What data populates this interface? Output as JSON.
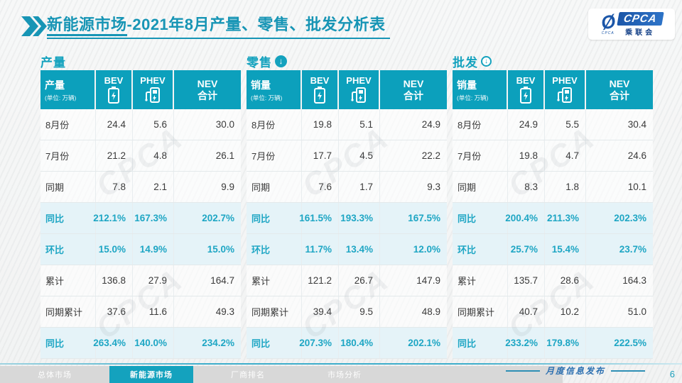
{
  "title": {
    "prefix": "新能源市场",
    "suffix": "-2021年8月产量、零售、批发分析表"
  },
  "logo": {
    "swoosh": "Ø",
    "swoosh_sub": "CPCA",
    "name": "CPCA",
    "assoc": "乘联会"
  },
  "shared": {
    "bev": "BEV",
    "phev": "PHEV",
    "nev_line1": "NEV",
    "nev_line2": "合计"
  },
  "watermark": "CPCA",
  "tables": [
    {
      "section": "产量",
      "header_label": "产量",
      "unit": "(单位: 万辆)",
      "rows": [
        {
          "label": "8月份",
          "values": [
            "24.4",
            "5.6",
            "30.0"
          ],
          "highlight": false
        },
        {
          "label": "7月份",
          "values": [
            "21.2",
            "4.8",
            "26.1"
          ],
          "highlight": false
        },
        {
          "label": "同期",
          "values": [
            "7.8",
            "2.1",
            "9.9"
          ],
          "highlight": false
        },
        {
          "label": "同比",
          "values": [
            "212.1%",
            "167.3%",
            "202.7%"
          ],
          "highlight": true
        },
        {
          "label": "环比",
          "values": [
            "15.0%",
            "14.9%",
            "15.0%"
          ],
          "highlight": true
        },
        {
          "label": "累计",
          "values": [
            "136.8",
            "27.9",
            "164.7"
          ],
          "highlight": false
        },
        {
          "label": "同期累计",
          "values": [
            "37.6",
            "11.6",
            "49.3"
          ],
          "highlight": false
        },
        {
          "label": "同比",
          "values": [
            "263.4%",
            "140.0%",
            "234.2%"
          ],
          "highlight": true
        }
      ]
    },
    {
      "section": "零售",
      "header_label": "销量",
      "unit": "(单位: 万辆)",
      "rows": [
        {
          "label": "8月份",
          "values": [
            "19.8",
            "5.1",
            "24.9"
          ],
          "highlight": false
        },
        {
          "label": "7月份",
          "values": [
            "17.7",
            "4.5",
            "22.2"
          ],
          "highlight": false
        },
        {
          "label": "同期",
          "values": [
            "7.6",
            "1.7",
            "9.3"
          ],
          "highlight": false
        },
        {
          "label": "同比",
          "values": [
            "161.5%",
            "193.3%",
            "167.5%"
          ],
          "highlight": true
        },
        {
          "label": "环比",
          "values": [
            "11.7%",
            "13.4%",
            "12.0%"
          ],
          "highlight": true
        },
        {
          "label": "累计",
          "values": [
            "121.2",
            "26.7",
            "147.9"
          ],
          "highlight": false
        },
        {
          "label": "同期累计",
          "values": [
            "39.4",
            "9.5",
            "48.9"
          ],
          "highlight": false
        },
        {
          "label": "同比",
          "values": [
            "207.3%",
            "180.4%",
            "202.1%"
          ],
          "highlight": true
        }
      ]
    },
    {
      "section": "批发",
      "header_label": "销量",
      "unit": "(单位: 万辆)",
      "rows": [
        {
          "label": "8月份",
          "values": [
            "24.9",
            "5.5",
            "30.4"
          ],
          "highlight": false
        },
        {
          "label": "7月份",
          "values": [
            "19.8",
            "4.7",
            "24.6"
          ],
          "highlight": false
        },
        {
          "label": "同期",
          "values": [
            "8.3",
            "1.8",
            "10.1"
          ],
          "highlight": false
        },
        {
          "label": "同比",
          "values": [
            "200.4%",
            "211.3%",
            "202.3%"
          ],
          "highlight": true
        },
        {
          "label": "环比",
          "values": [
            "25.7%",
            "15.4%",
            "23.7%"
          ],
          "highlight": true
        },
        {
          "label": "累计",
          "values": [
            "135.7",
            "28.6",
            "164.3"
          ],
          "highlight": false
        },
        {
          "label": "同期累计",
          "values": [
            "40.7",
            "10.2",
            "51.0"
          ],
          "highlight": false
        },
        {
          "label": "同比",
          "values": [
            "233.2%",
            "179.8%",
            "222.5%"
          ],
          "highlight": true
        }
      ]
    }
  ],
  "footer": {
    "tabs": [
      {
        "label": "总体市场",
        "active": false
      },
      {
        "label": "新能源市场",
        "active": true
      },
      {
        "label": "厂商排名",
        "active": false
      },
      {
        "label": "市场分析",
        "active": false
      }
    ],
    "publish_label": "月度信息发布",
    "page": "6"
  },
  "colors": {
    "teal": "#0CA0BC",
    "title_teal": "#1795B5",
    "highlight_bg": "#E5F3F8",
    "value_teal": "#1EA6C4"
  }
}
